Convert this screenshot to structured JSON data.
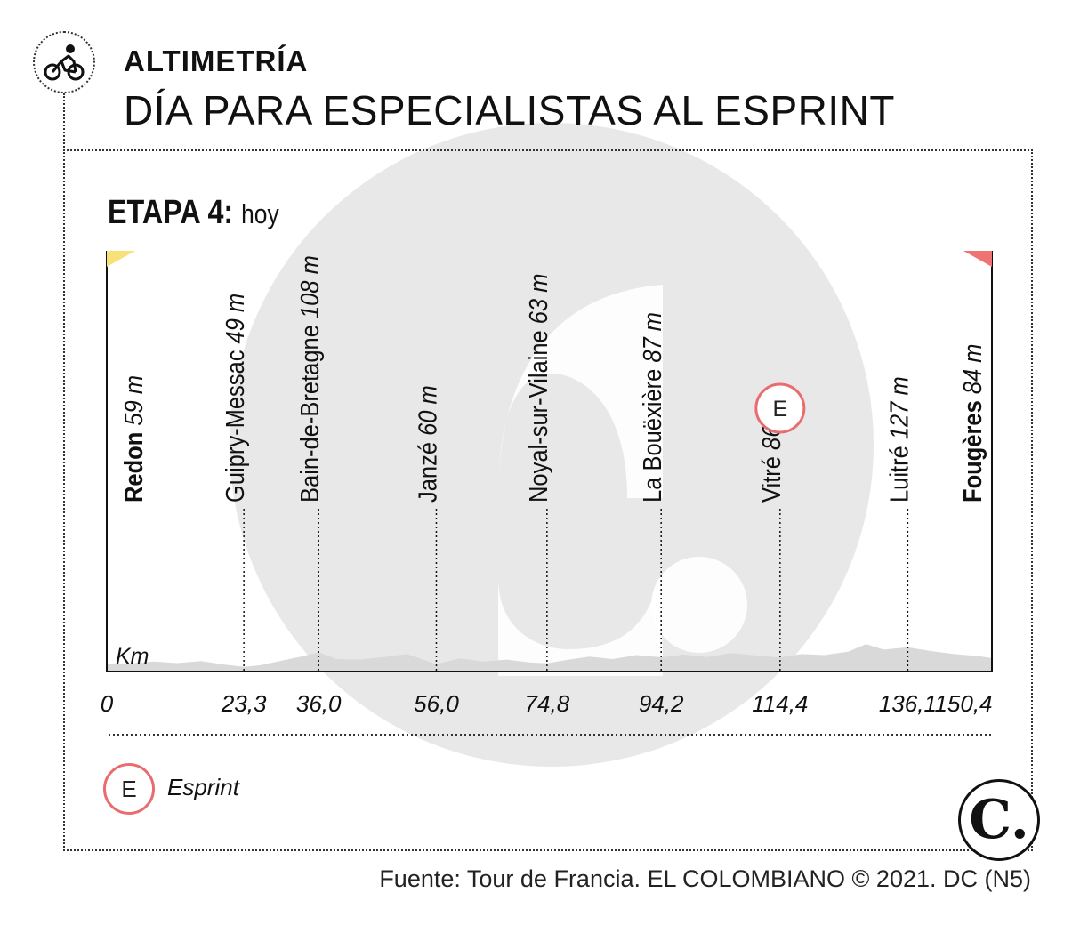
{
  "header": {
    "label": "ALTIMETRÍA",
    "headline": "DÍA PARA ESPECIALISTAS AL ESPRINT"
  },
  "stage": {
    "title": "ETAPA 4:",
    "subtitle": "hoy"
  },
  "chart_data": {
    "type": "area",
    "xlabel": "Km",
    "x_range": [
      0,
      150.4
    ],
    "elevation_unit": "m",
    "start": {
      "name": "Redon",
      "elevation": "59 m",
      "km": 0,
      "km_label": "0",
      "flag_color": "#f7e27a"
    },
    "finish": {
      "name": "Fougères",
      "elevation": "84 m",
      "km": 150.4,
      "km_label": "150,4",
      "flag_color": "#ee7474"
    },
    "waypoints": [
      {
        "name": "Guipry-Messac",
        "elevation": "49 m",
        "km": 23.3,
        "km_label": "23,3"
      },
      {
        "name": "Bain-de-Bretagne",
        "elevation": "108 m",
        "km": 36.0,
        "km_label": "36,0"
      },
      {
        "name": "Janzé",
        "elevation": "60 m",
        "km": 56.0,
        "km_label": "56,0"
      },
      {
        "name": "Noyal-sur-Vilaine",
        "elevation": "63 m",
        "km": 74.8,
        "km_label": "74,8"
      },
      {
        "name": "La Bouëxière",
        "elevation": "87 m",
        "km": 94.2,
        "km_label": "94,2"
      },
      {
        "name": "Vitré",
        "elevation": "86 m",
        "km": 114.4,
        "km_label": "114,4",
        "sprint": true
      },
      {
        "name": "Luitré",
        "elevation": "127 m",
        "km": 136.1,
        "km_label": "136,1"
      }
    ],
    "profile": [
      [
        0,
        59
      ],
      [
        4,
        62
      ],
      [
        8,
        70
      ],
      [
        12,
        64
      ],
      [
        16,
        72
      ],
      [
        20,
        58
      ],
      [
        23.3,
        49
      ],
      [
        26,
        55
      ],
      [
        30,
        75
      ],
      [
        33,
        90
      ],
      [
        36,
        108
      ],
      [
        39,
        80
      ],
      [
        43,
        78
      ],
      [
        47,
        88
      ],
      [
        51,
        100
      ],
      [
        56,
        60
      ],
      [
        60,
        82
      ],
      [
        64,
        70
      ],
      [
        68,
        78
      ],
      [
        72,
        66
      ],
      [
        74.8,
        63
      ],
      [
        78,
        76
      ],
      [
        82,
        90
      ],
      [
        86,
        80
      ],
      [
        90,
        96
      ],
      [
        94.2,
        87
      ],
      [
        98,
        98
      ],
      [
        102,
        88
      ],
      [
        106,
        104
      ],
      [
        110,
        95
      ],
      [
        114.4,
        86
      ],
      [
        118,
        100
      ],
      [
        122,
        96
      ],
      [
        126,
        110
      ],
      [
        129,
        140
      ],
      [
        132,
        118
      ],
      [
        136.1,
        127
      ],
      [
        140,
        112
      ],
      [
        144,
        100
      ],
      [
        148,
        92
      ],
      [
        150.4,
        84
      ]
    ],
    "profile_color": "#d9d9d9",
    "sprint_color": "#e96d6f"
  },
  "legend": {
    "sprint_symbol": "E",
    "sprint_label": "Esprint"
  },
  "logo": {
    "letter": "C."
  },
  "source": "Fuente: Tour de Francia. EL COLOMBIANO © 2021. DC (N5)"
}
